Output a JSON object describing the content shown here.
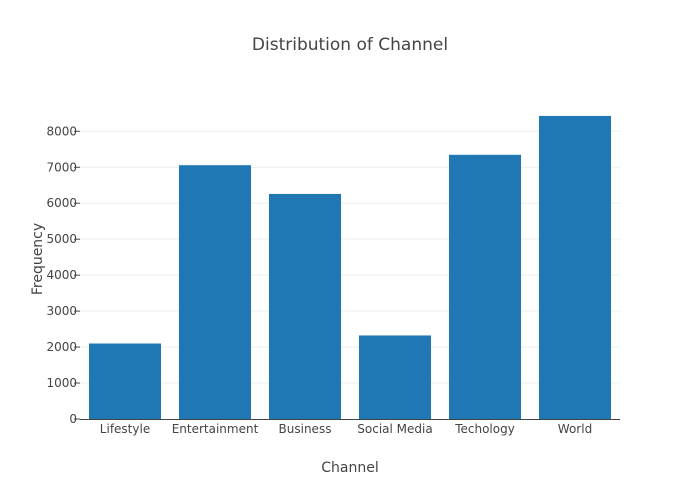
{
  "chart_data": {
    "type": "bar",
    "title": "Distribution of Channel",
    "xlabel": "Channel",
    "ylabel": "Frequency",
    "categories": [
      "Lifestyle",
      "Entertainment",
      "Business",
      "Social Media",
      "Techology",
      "World"
    ],
    "values": [
      2099,
      7057,
      6258,
      2323,
      7346,
      8427
    ],
    "ylim": [
      0,
      8870
    ],
    "yticks": [
      "0",
      "1000",
      "2000",
      "3000",
      "4000",
      "5000",
      "6000",
      "7000",
      "8000"
    ],
    "grid": true,
    "legend": "none",
    "colors": {
      "bar": "#1f77b4",
      "grid": "#eeeeee",
      "axis": "#444444",
      "text": "#444444"
    }
  }
}
